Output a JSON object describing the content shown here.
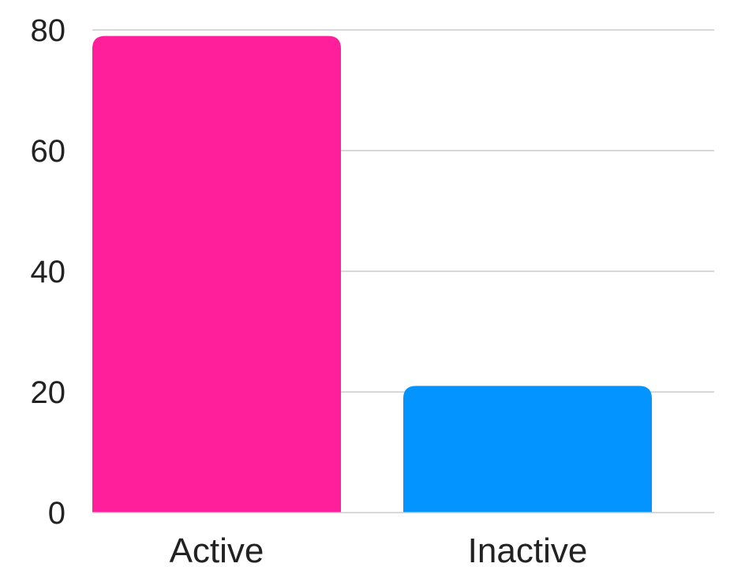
{
  "chart_data": {
    "type": "bar",
    "categories": [
      "Active",
      "Inactive"
    ],
    "values": [
      79,
      21
    ],
    "colors": [
      "#ff1f9b",
      "#0394ff"
    ],
    "ylim": [
      0,
      80
    ],
    "yticks": [
      0,
      20,
      40,
      60,
      80
    ],
    "ytick_labels": [
      "0",
      "20",
      "40",
      "60",
      "80"
    ],
    "grid": true,
    "grid_color": "#c8ccd0",
    "title": "",
    "xlabel": "",
    "ylabel": ""
  }
}
